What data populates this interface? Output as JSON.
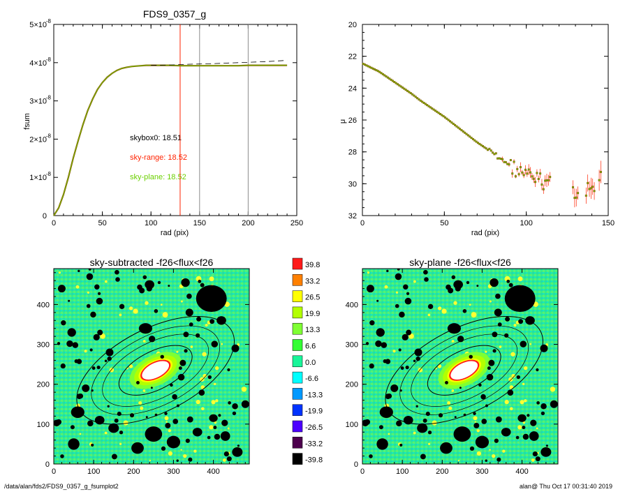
{
  "footer": {
    "path": "/data/alan/fds2/FDS9_0357_g_fsumplot2",
    "stamp": "alan@  Thu Oct 17 00:31:40 2019"
  },
  "colors": {
    "orange": "#8a5a00",
    "green": "#6bd000",
    "red": "#ff2200",
    "gray": "#8c8c8c",
    "black": "#000000"
  },
  "chart_data": [
    {
      "type": "line",
      "title": "FDS9_0357_g",
      "xlabel": "rad (pix)",
      "ylabel": "fsum",
      "xlim": [
        0,
        250
      ],
      "ylim": [
        0,
        5e-08
      ],
      "xticks": [
        "0",
        "50",
        "100",
        "150",
        "200",
        "250"
      ],
      "yticks": [
        {
          "base": "0",
          "exp": ""
        },
        {
          "base": "1×10",
          "exp": "-8"
        },
        {
          "base": "2×10",
          "exp": "-8"
        },
        {
          "base": "3×10",
          "exp": "-8"
        },
        {
          "base": "4×10",
          "exp": "-8"
        },
        {
          "base": "5×10",
          "exp": "-8"
        }
      ],
      "vlines": [
        {
          "x": 130,
          "color": "#ff2200"
        },
        {
          "x": 150,
          "color": "#8c8c8c"
        },
        {
          "x": 200,
          "color": "#8c8c8c"
        }
      ],
      "series": [
        {
          "style": "solid",
          "x": [
            0,
            5,
            10,
            15,
            20,
            25,
            30,
            35,
            40,
            45,
            50,
            55,
            60,
            65,
            70,
            75,
            80,
            85,
            90,
            95,
            100,
            110,
            120,
            130,
            140,
            150,
            160,
            170,
            180,
            190,
            200,
            210,
            220,
            230,
            240
          ],
          "values": [
            0,
            2e-09,
            5.5e-09,
            1e-08,
            1.5e-08,
            1.95e-08,
            2.38e-08,
            2.75e-08,
            3.05e-08,
            3.3e-08,
            3.48e-08,
            3.62e-08,
            3.72e-08,
            3.8e-08,
            3.85e-08,
            3.88e-08,
            3.9e-08,
            3.91e-08,
            3.92e-08,
            3.93e-08,
            3.93e-08,
            3.93e-08,
            3.93e-08,
            3.92e-08,
            3.92e-08,
            3.92e-08,
            3.92e-08,
            3.92e-08,
            3.92e-08,
            3.92e-08,
            3.93e-08,
            3.93e-08,
            3.93e-08,
            3.93e-08,
            3.93e-08
          ]
        },
        {
          "style": "dashed",
          "x": [
            100,
            120,
            140,
            160,
            180,
            200,
            220,
            240
          ],
          "values": [
            3.93e-08,
            3.94e-08,
            3.96e-08,
            3.97e-08,
            3.99e-08,
            4.01e-08,
            4.03e-08,
            4.06e-08
          ]
        }
      ],
      "annotations": [
        {
          "text": "skybox0: 18.51",
          "color": "#000000"
        },
        {
          "text": "sky-range: 18.52",
          "color": "#ff2200"
        },
        {
          "text": "sky-plane: 18.52",
          "color": "#6bd000"
        }
      ]
    },
    {
      "type": "scatter",
      "title": "",
      "xlabel": "rad (pix)",
      "ylabel": "μ",
      "xlim": [
        0,
        150
      ],
      "ylim": [
        32,
        20
      ],
      "xticks": [
        "0",
        "50",
        "100",
        "150"
      ],
      "yticks": [
        "20",
        "22",
        "24",
        "26",
        "28",
        "30",
        "32"
      ],
      "series": [
        {
          "x": [
            0,
            5,
            10,
            15,
            20,
            25,
            30,
            35,
            40,
            45,
            50,
            55,
            60,
            65,
            70,
            75,
            80,
            85,
            90,
            95,
            100,
            105,
            110,
            115,
            120,
            125,
            130,
            135,
            140,
            145,
            150
          ],
          "values": [
            22.45,
            22.7,
            22.95,
            23.3,
            23.65,
            24.0,
            24.35,
            24.75,
            25.1,
            25.45,
            25.8,
            26.2,
            26.6,
            27.0,
            27.4,
            27.75,
            28.1,
            28.5,
            28.8,
            29.2,
            29.5,
            29.6,
            29.9,
            29.8,
            30.0,
            30.8,
            30.5,
            30.6,
            30.3,
            29.5,
            29.8
          ]
        }
      ]
    },
    {
      "type": "heatmap",
      "title": "sky-subtracted -f26<flux<f26",
      "xlim": [
        0,
        490
      ],
      "ylim": [
        0,
        490
      ],
      "xticks": [
        "0",
        "100",
        "200",
        "300",
        "400"
      ],
      "yticks": [
        "0",
        "100",
        "200",
        "300",
        "400"
      ],
      "galaxy_center": [
        255,
        235
      ],
      "ellipses_semi_axes": [
        [
          100,
          48
        ],
        [
          145,
          70
        ],
        [
          175,
          88
        ],
        [
          215,
          105
        ]
      ],
      "ellipse_angle_deg": 27
    },
    {
      "type": "heatmap",
      "title": "sky-plane -f26<flux<f26",
      "xlim": [
        0,
        490
      ],
      "ylim": [
        0,
        490
      ],
      "xticks": [
        "0",
        "100",
        "200",
        "300",
        "400"
      ],
      "yticks": [
        "0",
        "100",
        "200",
        "300",
        "400"
      ],
      "galaxy_center": [
        255,
        235
      ],
      "ellipses_semi_axes": [
        [
          100,
          48
        ],
        [
          145,
          70
        ],
        [
          175,
          88
        ],
        [
          215,
          105
        ]
      ],
      "ellipse_angle_deg": 27
    }
  ],
  "colorbar": [
    {
      "label": "39.8",
      "color": "#ff1a1a"
    },
    {
      "label": "33.2",
      "color": "#ff8000"
    },
    {
      "label": "26.5",
      "color": "#ffff00"
    },
    {
      "label": "19.9",
      "color": "#b3ff00"
    },
    {
      "label": "13.3",
      "color": "#7fff33"
    },
    {
      "label": "6.6",
      "color": "#33ff33"
    },
    {
      "label": "0.0",
      "color": "#19f599"
    },
    {
      "label": "-6.6",
      "color": "#00ffff"
    },
    {
      "label": "-13.3",
      "color": "#0099ff"
    },
    {
      "label": "-19.9",
      "color": "#0033ff"
    },
    {
      "label": "-26.5",
      "color": "#4d00ff"
    },
    {
      "label": "-33.2",
      "color": "#4d004d"
    },
    {
      "label": "-39.8",
      "color": "#000000"
    }
  ]
}
